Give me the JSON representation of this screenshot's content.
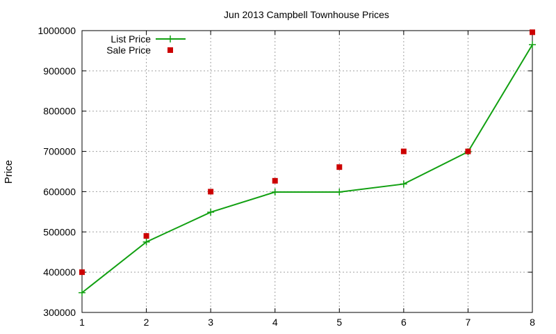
{
  "chart_data": {
    "type": "line",
    "title": "Jun 2013 Campbell Townhouse Prices",
    "xlabel": "",
    "ylabel": "Price",
    "xlim": [
      1,
      8
    ],
    "ylim": [
      300000,
      1000000
    ],
    "x_ticks": [
      "1",
      "2",
      "3",
      "4",
      "5",
      "6",
      "7",
      "8"
    ],
    "y_ticks": [
      "300000",
      "400000",
      "500000",
      "600000",
      "700000",
      "800000",
      "900000",
      "1000000"
    ],
    "grid": true,
    "legend_position": "top-left",
    "series": [
      {
        "name": "List Price",
        "style": "line+cross",
        "color": "#11a011",
        "x": [
          1,
          2,
          3,
          4,
          5,
          6,
          7,
          8
        ],
        "y": [
          349000,
          475000,
          549000,
          599000,
          599000,
          619000,
          699000,
          965000
        ]
      },
      {
        "name": "Sale Price",
        "style": "square-points",
        "color": "#cc0000",
        "x": [
          1,
          2,
          3,
          4,
          5,
          6,
          7,
          8
        ],
        "y": [
          400000,
          490000,
          600000,
          627000,
          661000,
          700000,
          700000,
          996000
        ]
      }
    ]
  }
}
